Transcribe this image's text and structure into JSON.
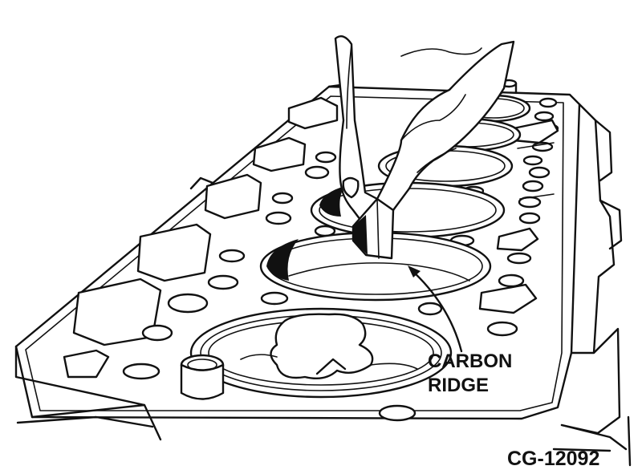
{
  "diagram": {
    "callout": {
      "line1": "CARBON",
      "line2": "RIDGE"
    },
    "figure_code": "CG-12092"
  }
}
